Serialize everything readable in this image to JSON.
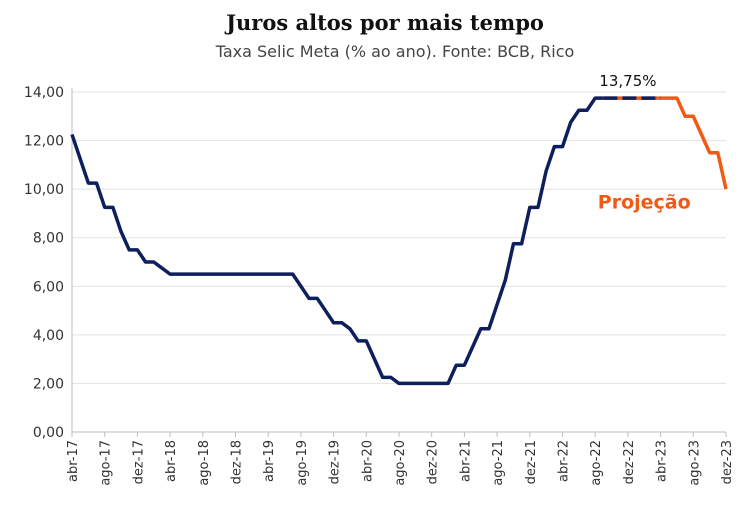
{
  "chart_data": {
    "type": "line",
    "title": "Juros altos por mais tempo",
    "subtitle": "Taxa Selic Meta (% ao ano). Fonte: BCB, Rico",
    "xlabel": "",
    "ylabel": "",
    "ylim": [
      0,
      14
    ],
    "yticks": [
      "0,00",
      "2,00",
      "4,00",
      "6,00",
      "8,00",
      "10,00",
      "12,00",
      "14,00"
    ],
    "xticks": [
      "abr-17",
      "ago-17",
      "dez-17",
      "abr-18",
      "ago-18",
      "dez-18",
      "abr-19",
      "ago-19",
      "dez-19",
      "abr-20",
      "ago-20",
      "dez-20",
      "abr-21",
      "ago-21",
      "dez-21",
      "abr-22",
      "ago-22",
      "dez-22",
      "abr-23",
      "ago-23",
      "dez-23"
    ],
    "grid": true,
    "legend": "none",
    "colors": {
      "historical": "#0d1f5c",
      "projection": "#f15a14"
    },
    "annotations": {
      "peak_label": "13,75%",
      "projection_label": "Projeção"
    },
    "series": [
      {
        "x": [
          "2017-04",
          "2017-05",
          "2017-06",
          "2017-07",
          "2017-08",
          "2017-09",
          "2017-10",
          "2017-11",
          "2017-12",
          "2018-01",
          "2018-02",
          "2018-03",
          "2018-04",
          "2018-05",
          "2018-06",
          "2018-07",
          "2018-08",
          "2018-09",
          "2018-10",
          "2018-11",
          "2018-12",
          "2019-01",
          "2019-02",
          "2019-03",
          "2019-04",
          "2019-05",
          "2019-06",
          "2019-07",
          "2019-08",
          "2019-09",
          "2019-10",
          "2019-11",
          "2019-12",
          "2020-01",
          "2020-02",
          "2020-03",
          "2020-04",
          "2020-05",
          "2020-06",
          "2020-07",
          "2020-08",
          "2020-09",
          "2020-10",
          "2020-11",
          "2020-12",
          "2021-01",
          "2021-02",
          "2021-03",
          "2021-04",
          "2021-05",
          "2021-06",
          "2021-07",
          "2021-08",
          "2021-09",
          "2021-10",
          "2021-11",
          "2021-12",
          "2022-01",
          "2022-02",
          "2022-03",
          "2022-04",
          "2022-05",
          "2022-06",
          "2022-07",
          "2022-08",
          "2022-09",
          "2022-10",
          "2022-11",
          "2022-12",
          "2023-01",
          "2023-02",
          "2023-03",
          "2023-04"
        ],
        "values": [
          12.25,
          11.25,
          10.25,
          10.25,
          9.25,
          9.25,
          8.25,
          7.5,
          7.5,
          7.0,
          7.0,
          6.75,
          6.5,
          6.5,
          6.5,
          6.5,
          6.5,
          6.5,
          6.5,
          6.5,
          6.5,
          6.5,
          6.5,
          6.5,
          6.5,
          6.5,
          6.5,
          6.5,
          6.0,
          5.5,
          5.5,
          5.0,
          4.5,
          4.5,
          4.25,
          3.75,
          3.75,
          3.0,
          2.25,
          2.25,
          2.0,
          2.0,
          2.0,
          2.0,
          2.0,
          2.0,
          2.0,
          2.75,
          2.75,
          3.5,
          4.25,
          4.25,
          5.25,
          6.25,
          7.75,
          7.75,
          9.25,
          9.25,
          10.75,
          11.75,
          11.75,
          12.75,
          13.25,
          13.25,
          13.75,
          13.75,
          13.75,
          13.75,
          13.75,
          13.75,
          13.75,
          13.75,
          13.75
        ]
      },
      {
        "x": [
          "2022-09",
          "2022-10",
          "2022-11",
          "2022-12",
          "2023-01",
          "2023-02",
          "2023-03",
          "2023-04",
          "2023-05",
          "2023-06",
          "2023-07",
          "2023-08",
          "2023-09",
          "2023-10",
          "2023-11",
          "2023-12"
        ],
        "values": [
          13.75,
          13.75,
          13.75,
          13.75,
          13.75,
          13.75,
          13.75,
          13.75,
          13.75,
          13.75,
          13.0,
          13.0,
          12.25,
          11.5,
          11.5,
          10.0
        ]
      }
    ]
  }
}
